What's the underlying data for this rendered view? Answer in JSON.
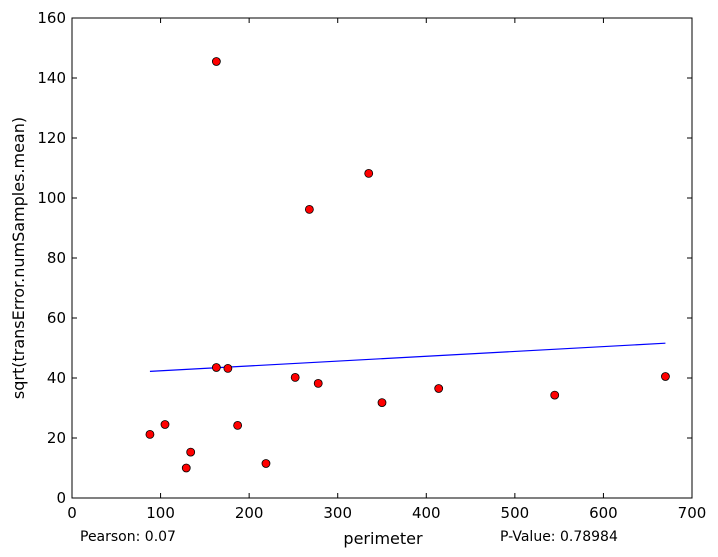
{
  "chart_data": {
    "type": "scatter",
    "title": "",
    "xlabel": "perimeter",
    "ylabel": "sqrt(transError.numSamples.mean)",
    "xlim": [
      0,
      700
    ],
    "ylim": [
      0,
      160
    ],
    "xticks": [
      0,
      100,
      200,
      300,
      400,
      500,
      600,
      700
    ],
    "yticks": [
      0,
      20,
      40,
      60,
      80,
      100,
      120,
      140,
      160
    ],
    "grid": false,
    "points": [
      {
        "x": 88,
        "y": 21.2
      },
      {
        "x": 105,
        "y": 24.5
      },
      {
        "x": 129,
        "y": 10.0
      },
      {
        "x": 134,
        "y": 15.3
      },
      {
        "x": 163,
        "y": 145.5
      },
      {
        "x": 163,
        "y": 43.5
      },
      {
        "x": 176,
        "y": 43.2
      },
      {
        "x": 187,
        "y": 24.2
      },
      {
        "x": 219,
        "y": 11.5
      },
      {
        "x": 252,
        "y": 40.2
      },
      {
        "x": 268,
        "y": 96.2
      },
      {
        "x": 278,
        "y": 38.2
      },
      {
        "x": 335,
        "y": 108.2
      },
      {
        "x": 350,
        "y": 31.8
      },
      {
        "x": 414,
        "y": 36.5
      },
      {
        "x": 545,
        "y": 34.3
      },
      {
        "x": 670,
        "y": 40.5
      }
    ],
    "fit_line": {
      "x": [
        88,
        670
      ],
      "y": [
        42.2,
        51.6
      ]
    },
    "point_color": "#ff0000",
    "line_color": "#0000ff",
    "annotations": {
      "pearson": "Pearson: 0.07",
      "pvalue": "P-Value: 0.78984"
    }
  }
}
